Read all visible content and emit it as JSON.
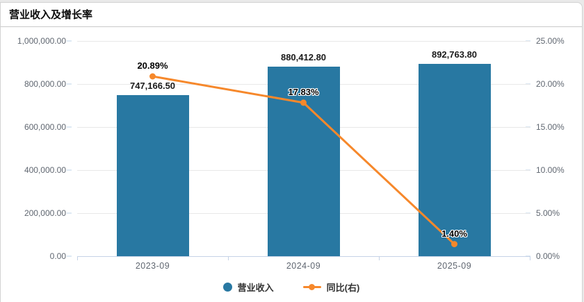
{
  "page": {
    "title": "营业收入及增长率"
  },
  "chart_data": {
    "type": "bar",
    "title": "营业收入及增长率",
    "categories": [
      "2023-09",
      "2024-09",
      "2025-09"
    ],
    "series": [
      {
        "name": "营业收入",
        "type": "bar",
        "axis": "left",
        "color": "#2878a2",
        "values": [
          747166.5,
          880412.8,
          892763.8
        ],
        "labels": [
          "747,166.50",
          "880,412.80",
          "892,763.80"
        ]
      },
      {
        "name": "同比(右)",
        "type": "line",
        "axis": "right",
        "color": "#f6882b",
        "values": [
          20.89,
          17.83,
          1.4
        ],
        "labels": [
          "20.89%",
          "17.83%",
          "1.40%"
        ]
      }
    ],
    "left_axis": {
      "min": 0,
      "max": 1000000,
      "ticks": [
        "1,000,000.00",
        "800,000.00",
        "600,000.00",
        "400,000.00",
        "200,000.00",
        "0.00"
      ]
    },
    "right_axis": {
      "min": 0,
      "max": 25,
      "ticks": [
        "25.00%",
        "20.00%",
        "15.00%",
        "10.00%",
        "5.00%",
        "0.00%"
      ]
    },
    "grid": true,
    "legend_position": "bottom"
  },
  "legend": {
    "items": [
      {
        "label": "营业收入",
        "marker": "circle",
        "color": "#2878a2"
      },
      {
        "label": "同比(右)",
        "marker": "line-dot",
        "color": "#f6882b"
      }
    ]
  },
  "colors": {
    "bar": "#2878a2",
    "line": "#f6882b",
    "gridline": "#e8e8e8",
    "axis_line": "#c5d2e6",
    "tick_text": "#5f6670",
    "page_background": "#e9e9e9",
    "card_background": "#ffffff"
  }
}
